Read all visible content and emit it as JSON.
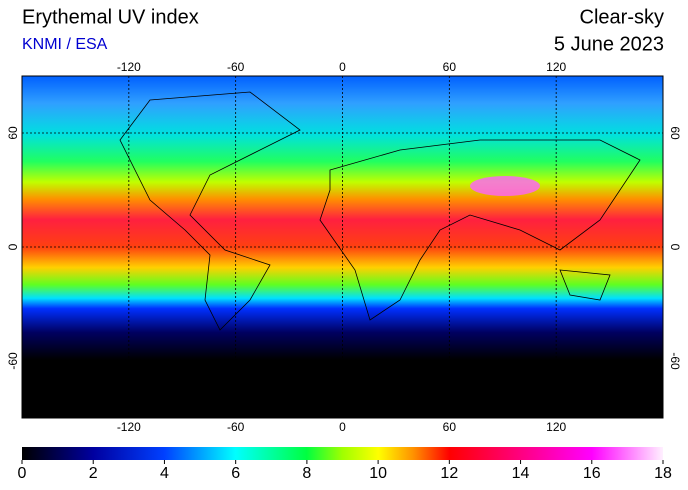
{
  "header": {
    "title": "Erythemal UV index",
    "source": "KNMI / ESA",
    "mode": "Clear-sky",
    "date": "5 June 2023"
  },
  "map": {
    "lon_range": [
      -180,
      180
    ],
    "lat_range": [
      -90,
      90
    ],
    "lon_ticks": [
      -120,
      -60,
      0,
      60,
      120
    ],
    "lat_ticks": [
      60,
      0,
      -60
    ]
  },
  "colorbar": {
    "range": [
      0,
      18
    ],
    "ticks": [
      0,
      2,
      4,
      6,
      8,
      10,
      12,
      14,
      16,
      18
    ]
  }
}
